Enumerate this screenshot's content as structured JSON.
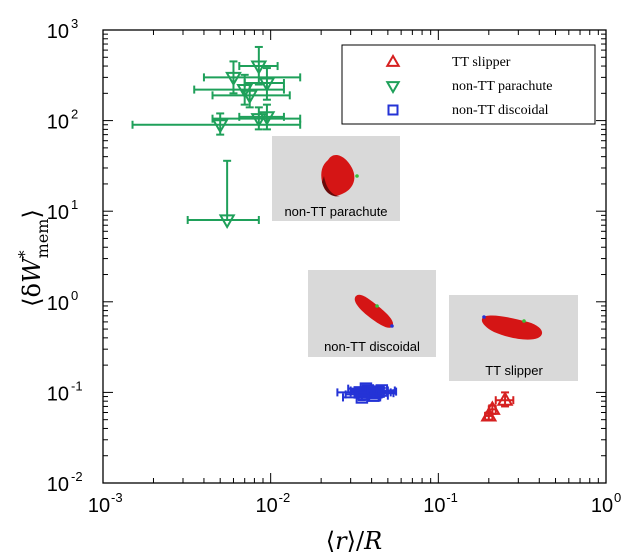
{
  "chart_data": {
    "type": "scatter",
    "log_x": true,
    "log_y": true,
    "xlim": [
      0.001,
      1
    ],
    "ylim": [
      0.01,
      1000
    ],
    "x_ticks": [
      {
        "value": 0.001,
        "base": "10",
        "exp": "-3"
      },
      {
        "value": 0.01,
        "base": "10",
        "exp": "-2"
      },
      {
        "value": 0.1,
        "base": "10",
        "exp": "-1"
      },
      {
        "value": 1,
        "base": "10",
        "exp": "0"
      }
    ],
    "y_ticks": [
      {
        "value": 0.01,
        "base": "10",
        "exp": "-2"
      },
      {
        "value": 0.1,
        "base": "10",
        "exp": "-1"
      },
      {
        "value": 1,
        "base": "10",
        "exp": "0"
      },
      {
        "value": 10,
        "base": "10",
        "exp": "1"
      },
      {
        "value": 100,
        "base": "10",
        "exp": "2"
      },
      {
        "value": 1000,
        "base": "10",
        "exp": "3"
      }
    ],
    "xlabel": {
      "l": "⟨",
      "main": "r",
      "r": "⟩/",
      "after": "R"
    },
    "ylabel": {
      "l": "⟨δ",
      "main": "W",
      "sup": "*",
      "sub": "mem",
      "r": "⟩"
    },
    "grid": false,
    "legend_position": "top-right",
    "series": [
      {
        "name": "TT slipper",
        "marker": "triangle-up",
        "color": "#d62020",
        "points": [
          {
            "x": 0.2,
            "y": 0.055,
            "xerr": [
              0.19,
              0.21
            ],
            "yerr": [
              0.05,
              0.06
            ]
          },
          {
            "x": 0.21,
            "y": 0.065,
            "xerr": [
              0.2,
              0.22
            ],
            "yerr": [
              0.058,
              0.072
            ]
          },
          {
            "x": 0.25,
            "y": 0.082,
            "xerr": [
              0.22,
              0.28
            ],
            "yerr": [
              0.07,
              0.1
            ]
          }
        ]
      },
      {
        "name": "non-TT parachute",
        "marker": "triangle-down",
        "color": "#1fa05a",
        "points": [
          {
            "x": 0.0085,
            "y": 400,
            "xerr": [
              0.0065,
              0.011
            ],
            "yerr": [
              250,
              650
            ]
          },
          {
            "x": 0.006,
            "y": 300,
            "xerr": [
              0.004,
              0.015
            ],
            "yerr": [
              200,
              450
            ]
          },
          {
            "x": 0.0095,
            "y": 260,
            "xerr": [
              0.007,
              0.012
            ],
            "yerr": [
              170,
              380
            ]
          },
          {
            "x": 0.007,
            "y": 220,
            "xerr": [
              0.0035,
              0.012
            ],
            "yerr": [
              150,
              320
            ]
          },
          {
            "x": 0.0075,
            "y": 190,
            "xerr": [
              0.0045,
              0.013
            ],
            "yerr": [
              140,
              260
            ]
          },
          {
            "x": 0.0095,
            "y": 110,
            "xerr": [
              0.0065,
              0.012
            ],
            "yerr": [
              80,
              150
            ]
          },
          {
            "x": 0.0085,
            "y": 105,
            "xerr": [
              0.0045,
              0.015
            ],
            "yerr": [
              80,
              140
            ]
          },
          {
            "x": 0.005,
            "y": 90,
            "xerr": [
              0.0015,
              0.015
            ],
            "yerr": [
              70,
              120
            ]
          },
          {
            "x": 0.0055,
            "y": 8,
            "xerr": [
              0.0032,
              0.0085
            ],
            "yerr": [
              8,
              36
            ]
          }
        ]
      },
      {
        "name": "non-TT discoidal",
        "marker": "square",
        "color": "#2433d6",
        "points": [
          {
            "x": 0.034,
            "y": 0.1,
            "xerr": [
              0.025,
              0.045
            ],
            "yerr": [
              0.093,
              0.107
            ]
          },
          {
            "x": 0.036,
            "y": 0.095,
            "xerr": [
              0.028,
              0.046
            ],
            "yerr": [
              0.088,
              0.102
            ]
          },
          {
            "x": 0.038,
            "y": 0.105,
            "xerr": [
              0.03,
              0.05
            ],
            "yerr": [
              0.098,
              0.112
            ]
          },
          {
            "x": 0.04,
            "y": 0.1,
            "xerr": [
              0.03,
              0.052
            ],
            "yerr": [
              0.093,
              0.107
            ]
          },
          {
            "x": 0.042,
            "y": 0.098,
            "xerr": [
              0.032,
              0.054
            ],
            "yerr": [
              0.09,
              0.105
            ]
          },
          {
            "x": 0.044,
            "y": 0.102,
            "xerr": [
              0.035,
              0.056
            ],
            "yerr": [
              0.095,
              0.11
            ]
          },
          {
            "x": 0.037,
            "y": 0.11,
            "xerr": [
              0.029,
              0.047
            ],
            "yerr": [
              0.102,
              0.118
            ]
          },
          {
            "x": 0.035,
            "y": 0.088,
            "xerr": [
              0.027,
              0.045
            ],
            "yerr": [
              0.082,
              0.094
            ]
          },
          {
            "x": 0.041,
            "y": 0.092,
            "xerr": [
              0.033,
              0.05
            ],
            "yerr": [
              0.086,
              0.098
            ]
          },
          {
            "x": 0.046,
            "y": 0.105,
            "xerr": [
              0.038,
              0.055
            ],
            "yerr": [
              0.098,
              0.112
            ]
          }
        ]
      }
    ],
    "insets": [
      {
        "label": "non-TT parachute"
      },
      {
        "label": "non-TT discoidal"
      },
      {
        "label": "TT slipper"
      }
    ]
  }
}
